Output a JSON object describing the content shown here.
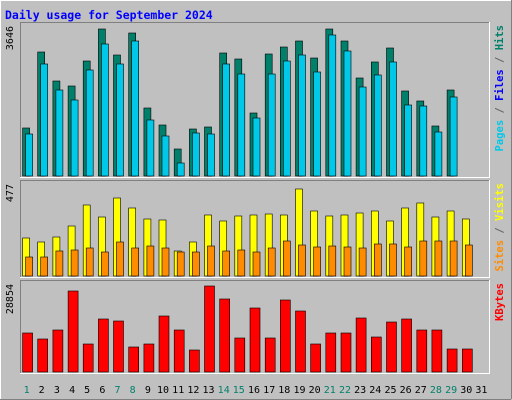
{
  "chart_data": {
    "type": "bar",
    "title": "Daily usage for September 2024",
    "x_labels": [
      "1",
      "2",
      "3",
      "4",
      "5",
      "6",
      "7",
      "8",
      "9",
      "10",
      "11",
      "12",
      "13",
      "14",
      "15",
      "16",
      "17",
      "18",
      "19",
      "20",
      "21",
      "22",
      "23",
      "24",
      "25",
      "26",
      "27",
      "28",
      "29",
      "30",
      "31"
    ],
    "weekend_days": [
      1,
      7,
      8,
      14,
      15,
      21,
      22,
      28,
      29
    ],
    "panels": [
      {
        "id": "hits",
        "max_label": "3646",
        "ymax": 3646,
        "series": [
          {
            "name": "Hits",
            "color": "#00806b",
            "values": [
              1165,
              3046,
              2329,
              2196,
              2823,
              3593,
              2955,
              3510,
              1664,
              1260,
              650,
              1140,
              1205,
              3015,
              2854,
              1552,
              2978,
              3157,
              3301,
              2896,
              3603,
              3302,
              2406,
              2778,
              3133,
              2068,
              1836,
              1233,
              2102,
              0,
              0
            ]
          },
          {
            "name": "Pages",
            "color": "#00c8e8",
            "values": [
              1031,
              2740,
              2107,
              1856,
              2583,
              3229,
              2745,
              3293,
              1378,
              978,
              317,
              1044,
              1036,
              2740,
              2494,
              1408,
              2484,
              2805,
              2955,
              2556,
              3450,
              3056,
              2174,
              2470,
              2781,
              1728,
              1714,
              1086,
              1938,
              0,
              0
            ]
          }
        ],
        "side_labels": [
          {
            "text": "Hits",
            "color": "#00806b"
          },
          {
            "text": "/",
            "color": "#666666"
          },
          {
            "text": "Files",
            "color": "#0000ff"
          },
          {
            "text": "/",
            "color": "#666666"
          },
          {
            "text": "Pages",
            "color": "#00c8e8"
          }
        ]
      },
      {
        "id": "visits",
        "max_label": "477",
        "ymax": 477,
        "series": [
          {
            "name": "Visits",
            "color": "#ffff00",
            "values": [
              198,
              177,
              203,
              264,
              370,
              307,
              411,
              356,
              301,
              291,
              130,
              178,
              322,
              289,
              316,
              322,
              325,
              322,
              458,
              342,
              313,
              318,
              331,
              342,
              286,
              358,
              385,
              311,
              341,
              298,
              0
            ]
          },
          {
            "name": "Sites",
            "color": "#ff8c00",
            "values": [
              99,
              99,
              130,
              135,
              148,
              124,
              179,
              146,
              156,
              148,
              125,
              125,
              159,
              129,
              135,
              128,
              145,
              185,
              164,
              154,
              155,
              150,
              147,
              170,
              167,
              153,
              182,
              186,
              183,
              165,
              0
            ]
          }
        ],
        "side_labels": [
          {
            "text": "Visits",
            "color": "#ffff00"
          },
          {
            "text": "/",
            "color": "#666666"
          },
          {
            "text": "Sites",
            "color": "#ff8c00"
          }
        ]
      },
      {
        "id": "kbytes",
        "max_label": "28854",
        "ymax": 28854,
        "series": [
          {
            "name": "KBytes",
            "color": "#ff0000",
            "values": [
              13000,
              11000,
              14000,
              26800,
              9300,
              17600,
              17000,
              8200,
              9200,
              18600,
              14000,
              7200,
              28500,
              24300,
              11300,
              21100,
              11300,
              23800,
              20300,
              9300,
              13100,
              13100,
              17800,
              11600,
              16600,
              17600,
              14000,
              14000,
              7600,
              7600,
              0
            ]
          }
        ],
        "side_labels": [
          {
            "text": "KBytes",
            "color": "#ff0000"
          }
        ]
      }
    ],
    "colors": {
      "background": "#c0c0c0",
      "title": "#0000ff",
      "weekday_label": "#000000",
      "weekend_label": "#00806b"
    }
  }
}
